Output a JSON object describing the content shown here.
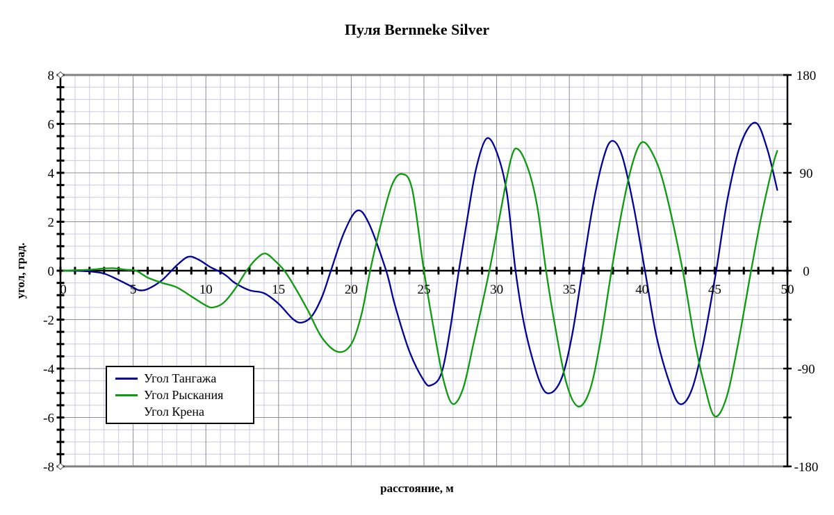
{
  "title": "Пуля Bernneke Silver",
  "axes": {
    "x": {
      "label": "расстояние, м",
      "min": 0,
      "max": 50,
      "minor_tick_step": 1,
      "label_step": 5,
      "tick_labels": [
        "0",
        "5",
        "10",
        "15",
        "20",
        "25",
        "30",
        "35",
        "40",
        "45",
        "50"
      ]
    },
    "y_left": {
      "label": "угол, град.",
      "min": -8,
      "max": 8,
      "minor_tick_step": 0.5,
      "label_step": 2,
      "tick_labels": [
        "8",
        "6",
        "4",
        "2",
        "0",
        "-2",
        "-4",
        "-6",
        "-8"
      ]
    },
    "y_right": {
      "min": -180,
      "max": 180,
      "minor_tick_step": 45,
      "label_step": 90,
      "tick_labels": [
        "180",
        "90",
        "0",
        "-90",
        "-180"
      ]
    }
  },
  "legend": {
    "items": [
      {
        "label": "Угол Тангажа",
        "color": "#000099",
        "has_line": true
      },
      {
        "label": "Угол Рыскания",
        "color": "#0c9b0c",
        "has_line": true
      },
      {
        "label": "Угол Крена",
        "color": "",
        "has_line": false
      }
    ]
  },
  "colors": {
    "pitch_line": "#000099",
    "yaw_line": "#0c9b0c",
    "grid_minor": "#c9c9e4",
    "grid_major": "#8c8c8c",
    "axis": "#000000",
    "border": "#808080"
  },
  "chart_data": {
    "type": "line",
    "title": "Пуля Bernneke Silver",
    "xlabel": "расстояние, м",
    "ylabel_left": "угол, град.",
    "xlim": [
      0,
      50
    ],
    "ylim_left": [
      -8,
      8
    ],
    "ylim_right": [
      -180,
      180
    ],
    "grid": true,
    "legend_position": "lower-left-inside",
    "series": [
      {
        "id": "pitch",
        "name": "Угол Тангажа",
        "color": "#000099",
        "axis": "left",
        "points": [
          [
            0.2,
            0
          ],
          [
            1,
            0
          ],
          [
            2,
            -0.03
          ],
          [
            3,
            -0.12
          ],
          [
            4,
            -0.38
          ],
          [
            5,
            -0.68
          ],
          [
            5.4,
            -0.8
          ],
          [
            6,
            -0.75
          ],
          [
            7,
            -0.38
          ],
          [
            8,
            0.22
          ],
          [
            8.8,
            0.57
          ],
          [
            9.5,
            0.45
          ],
          [
            10.3,
            0.15
          ],
          [
            11,
            -0.05
          ],
          [
            11.5,
            -0.25
          ],
          [
            12,
            -0.5
          ],
          [
            13,
            -0.8
          ],
          [
            14,
            -0.92
          ],
          [
            15,
            -1.35
          ],
          [
            16,
            -1.98
          ],
          [
            16.6,
            -2.12
          ],
          [
            17.3,
            -1.85
          ],
          [
            18,
            -1.05
          ],
          [
            18.6,
            0
          ],
          [
            19.5,
            1.55
          ],
          [
            20.4,
            2.45
          ],
          [
            21.2,
            1.95
          ],
          [
            22.4,
            0
          ],
          [
            23,
            -1.4
          ],
          [
            24,
            -3.3
          ],
          [
            25,
            -4.5
          ],
          [
            25.5,
            -4.68
          ],
          [
            26.2,
            -4.2
          ],
          [
            26.8,
            -2.4
          ],
          [
            27.4,
            0
          ],
          [
            28,
            2.2
          ],
          [
            28.6,
            4.2
          ],
          [
            29.3,
            5.4
          ],
          [
            30,
            4.85
          ],
          [
            30.7,
            3.2
          ],
          [
            31.3,
            0
          ],
          [
            32,
            -2.5
          ],
          [
            33,
            -4.6
          ],
          [
            33.7,
            -5.0
          ],
          [
            34.5,
            -4.35
          ],
          [
            35.2,
            -2.6
          ],
          [
            35.9,
            0
          ],
          [
            36.6,
            2.6
          ],
          [
            37.3,
            4.5
          ],
          [
            37.9,
            5.3
          ],
          [
            38.6,
            4.75
          ],
          [
            39.4,
            2.7
          ],
          [
            40.2,
            0
          ],
          [
            41,
            -2.7
          ],
          [
            41.9,
            -4.6
          ],
          [
            42.6,
            -5.45
          ],
          [
            43.4,
            -4.9
          ],
          [
            44.2,
            -3.0
          ],
          [
            45.1,
            0
          ],
          [
            45.9,
            3.0
          ],
          [
            46.8,
            5.2
          ],
          [
            47.8,
            6.05
          ],
          [
            48.6,
            5.0
          ],
          [
            49.3,
            3.3
          ]
        ]
      },
      {
        "id": "yaw",
        "name": "Угол Рыскания",
        "color": "#0c9b0c",
        "axis": "left",
        "points": [
          [
            0.2,
            0
          ],
          [
            1,
            0.02
          ],
          [
            2,
            0.04
          ],
          [
            3,
            0.09
          ],
          [
            3.7,
            0.1
          ],
          [
            4.5,
            0.04
          ],
          [
            5.2,
            0
          ],
          [
            6,
            -0.28
          ],
          [
            7,
            -0.5
          ],
          [
            8,
            -0.68
          ],
          [
            9,
            -1.05
          ],
          [
            10,
            -1.42
          ],
          [
            10.5,
            -1.5
          ],
          [
            11.2,
            -1.32
          ],
          [
            12,
            -0.75
          ],
          [
            12.8,
            0
          ],
          [
            13.5,
            0.5
          ],
          [
            14.1,
            0.7
          ],
          [
            14.8,
            0.38
          ],
          [
            15.4,
            0
          ],
          [
            16,
            -0.55
          ],
          [
            17,
            -1.6
          ],
          [
            18,
            -2.75
          ],
          [
            19.1,
            -3.32
          ],
          [
            20,
            -3.0
          ],
          [
            20.7,
            -1.8
          ],
          [
            21.3,
            0
          ],
          [
            22,
            1.8
          ],
          [
            22.8,
            3.5
          ],
          [
            23.5,
            3.95
          ],
          [
            24.2,
            3.3
          ],
          [
            25,
            0
          ],
          [
            25.8,
            -2.8
          ],
          [
            26.4,
            -4.6
          ],
          [
            27,
            -5.45
          ],
          [
            27.7,
            -4.8
          ],
          [
            28.4,
            -3.0
          ],
          [
            29.5,
            0
          ],
          [
            30.2,
            2.2
          ],
          [
            31,
            4.6
          ],
          [
            31.5,
            4.95
          ],
          [
            32.2,
            4.1
          ],
          [
            32.8,
            2.6
          ],
          [
            33.4,
            0
          ],
          [
            34,
            -2.2
          ],
          [
            34.8,
            -4.6
          ],
          [
            35.6,
            -5.55
          ],
          [
            36.4,
            -4.9
          ],
          [
            37.1,
            -3.0
          ],
          [
            37.9,
            0
          ],
          [
            38.6,
            2.4
          ],
          [
            39.3,
            4.3
          ],
          [
            40,
            5.25
          ],
          [
            40.8,
            4.7
          ],
          [
            41.6,
            3.3
          ],
          [
            42.8,
            0
          ],
          [
            43.6,
            -2.8
          ],
          [
            44.3,
            -4.7
          ],
          [
            45,
            -5.95
          ],
          [
            45.8,
            -5.2
          ],
          [
            46.6,
            -3.0
          ],
          [
            47.5,
            0
          ],
          [
            48.2,
            2.2
          ],
          [
            49,
            4.3
          ],
          [
            49.3,
            4.9
          ]
        ]
      },
      {
        "id": "roll",
        "name": "Угол Крена",
        "color": "",
        "axis": "left",
        "points": []
      }
    ]
  }
}
